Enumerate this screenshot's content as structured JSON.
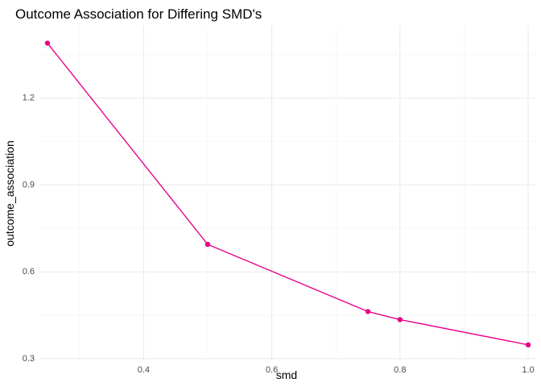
{
  "chart_data": {
    "type": "line",
    "title": "Outcome Association for Differing SMD's",
    "xlabel": "smd",
    "ylabel": "outcome_association",
    "x_ticks": [
      0.4,
      0.6,
      0.8,
      1.0
    ],
    "x_tick_labels": [
      "0.4",
      "0.6",
      "0.8",
      "1.0"
    ],
    "y_ticks": [
      0.3,
      0.6,
      0.9,
      1.2
    ],
    "y_tick_labels": [
      "0.3",
      "0.6",
      "0.9",
      "1.2"
    ],
    "xlim": [
      0.2375,
      1.0125
    ],
    "ylim": [
      0.297,
      1.45
    ],
    "grid": true,
    "legend": "none",
    "series": [
      {
        "color": "#e7058a",
        "x": [
          0.25,
          0.5,
          0.75,
          0.8,
          1.0
        ],
        "y": [
          1.39,
          0.695,
          0.463,
          0.435,
          0.348
        ]
      }
    ]
  }
}
